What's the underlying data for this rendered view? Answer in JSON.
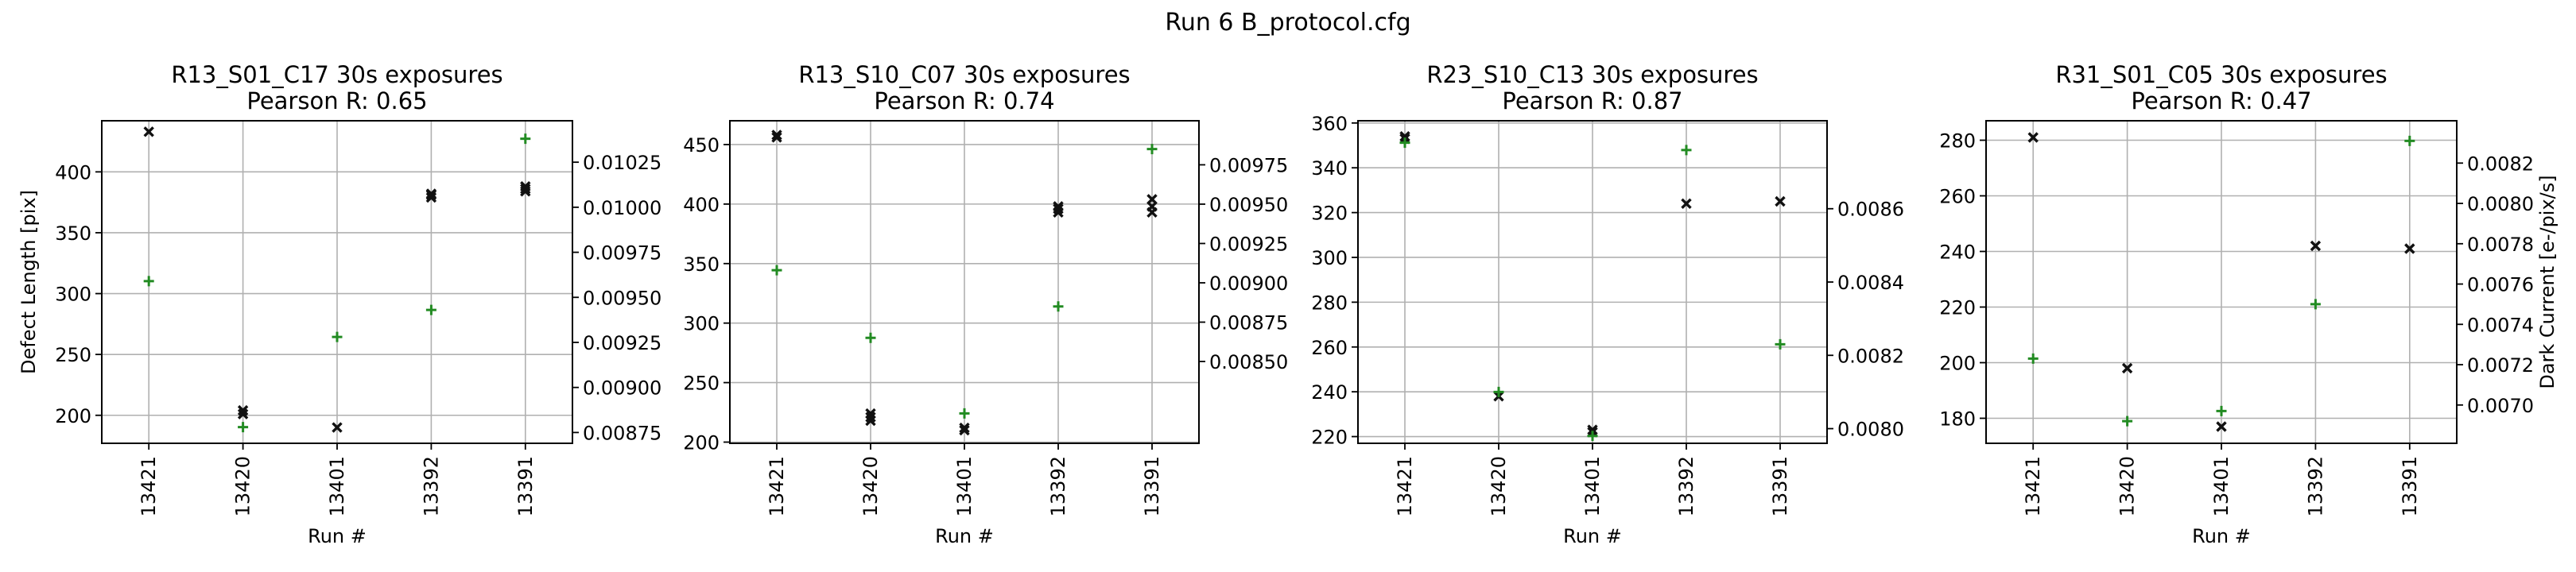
{
  "figure": {
    "suptitle": "Run 6 B_protocol.cfg"
  },
  "chart_data": [
    {
      "type": "scatter",
      "title": "R13_S01_C17 30s exposures",
      "subtitle": "Pearson R: 0.65",
      "xlabel": "Run #",
      "ylabel_left": "Defect Length [pix]",
      "ylabel_right": "",
      "categories": [
        "13421",
        "13420",
        "13401",
        "13392",
        "13391"
      ],
      "left_axis": {
        "ylim": [
          177,
          442
        ],
        "ticks": [
          200,
          250,
          300,
          350,
          400
        ]
      },
      "right_axis": {
        "ylim": [
          0.00869,
          0.01048
        ],
        "ticks": [
          0.00875,
          0.009,
          0.00925,
          0.0095,
          0.00975,
          0.01,
          0.01025
        ]
      },
      "grid": true,
      "series": [
        {
          "axis": "left",
          "marker": "x",
          "color": "#111111",
          "points": [
            [
              0,
              433
            ],
            [
              1,
              201
            ],
            [
              1,
              204
            ],
            [
              2,
              190
            ],
            [
              3,
              379
            ],
            [
              3,
              381
            ],
            [
              3,
              382
            ],
            [
              4,
              384
            ],
            [
              4,
              386
            ],
            [
              4,
              388
            ]
          ]
        },
        {
          "axis": "right",
          "marker": "+",
          "color": "#228B22",
          "points": [
            [
              0,
              0.00959
            ],
            [
              1,
              0.00878
            ],
            [
              2,
              0.00928
            ],
            [
              3,
              0.00943
            ],
            [
              4,
              0.01038
            ]
          ]
        }
      ]
    },
    {
      "type": "scatter",
      "title": "R13_S10_C07 30s exposures",
      "subtitle": "Pearson R: 0.74",
      "xlabel": "Run #",
      "ylabel_left": "",
      "ylabel_right": "",
      "categories": [
        "13421",
        "13420",
        "13401",
        "13392",
        "13391"
      ],
      "left_axis": {
        "ylim": [
          199,
          470
        ],
        "ticks": [
          200,
          250,
          300,
          350,
          400,
          450
        ]
      },
      "right_axis": {
        "ylim": [
          0.00798,
          0.01003
        ],
        "ticks": [
          0.0085,
          0.00875,
          0.009,
          0.00925,
          0.0095,
          0.00975
        ]
      },
      "grid": true,
      "series": [
        {
          "axis": "left",
          "marker": "x",
          "color": "#111111",
          "points": [
            [
              0,
              456
            ],
            [
              0,
              458
            ],
            [
              1,
              218
            ],
            [
              1,
              221
            ],
            [
              1,
              224
            ],
            [
              2,
              210
            ],
            [
              2,
              212
            ],
            [
              3,
              393
            ],
            [
              3,
              396
            ],
            [
              3,
              398
            ],
            [
              4,
              393
            ],
            [
              4,
              398
            ],
            [
              4,
              404
            ]
          ]
        },
        {
          "axis": "right",
          "marker": "+",
          "color": "#228B22",
          "points": [
            [
              0,
              0.00908
            ],
            [
              1,
              0.00865
            ],
            [
              2,
              0.00817
            ],
            [
              3,
              0.00885
            ],
            [
              4,
              0.00985
            ]
          ]
        }
      ]
    },
    {
      "type": "scatter",
      "title": "R23_S10_C13 30s exposures",
      "subtitle": "Pearson R: 0.87",
      "xlabel": "Run #",
      "ylabel_left": "",
      "ylabel_right": "",
      "categories": [
        "13421",
        "13420",
        "13401",
        "13392",
        "13391"
      ],
      "left_axis": {
        "ylim": [
          217,
          361
        ],
        "ticks": [
          220,
          240,
          260,
          280,
          300,
          320,
          340,
          360
        ]
      },
      "right_axis": {
        "ylim": [
          0.00796,
          0.00884
        ],
        "ticks": [
          0.008,
          0.0082,
          0.0084,
          0.0086
        ]
      },
      "grid": true,
      "series": [
        {
          "axis": "left",
          "marker": "x",
          "color": "#111111",
          "points": [
            [
              0,
              353
            ],
            [
              0,
              354
            ],
            [
              1,
              238
            ],
            [
              2,
              222
            ],
            [
              2,
              223
            ],
            [
              3,
              324
            ],
            [
              4,
              325
            ]
          ]
        },
        {
          "axis": "right",
          "marker": "+",
          "color": "#228B22",
          "points": [
            [
              0,
              0.00878
            ],
            [
              1,
              0.0081
            ],
            [
              2,
              0.00798
            ],
            [
              3,
              0.00876
            ],
            [
              4,
              0.00823
            ]
          ]
        }
      ]
    },
    {
      "type": "scatter",
      "title": "R31_S01_C05 30s exposures",
      "subtitle": "Pearson R: 0.47",
      "xlabel": "Run #",
      "ylabel_left": "",
      "ylabel_right": "Dark Current [e-/pix/s]",
      "categories": [
        "13421",
        "13420",
        "13401",
        "13392",
        "13391"
      ],
      "left_axis": {
        "ylim": [
          171,
          287
        ],
        "ticks": [
          180,
          200,
          220,
          240,
          260,
          280
        ]
      },
      "right_axis": {
        "ylim": [
          0.00681,
          0.00841
        ],
        "ticks": [
          0.007,
          0.0072,
          0.0074,
          0.0076,
          0.0078,
          0.008,
          0.0082
        ]
      },
      "grid": true,
      "series": [
        {
          "axis": "left",
          "marker": "x",
          "color": "#111111",
          "points": [
            [
              0,
              281
            ],
            [
              1,
              198
            ],
            [
              2,
              177
            ],
            [
              3,
              242
            ],
            [
              4,
              241
            ]
          ]
        },
        {
          "axis": "right",
          "marker": "+",
          "color": "#228B22",
          "points": [
            [
              0,
              0.00723
            ],
            [
              1,
              0.00692
            ],
            [
              2,
              0.00697
            ],
            [
              3,
              0.0075
            ],
            [
              4,
              0.00831
            ]
          ]
        }
      ]
    }
  ]
}
